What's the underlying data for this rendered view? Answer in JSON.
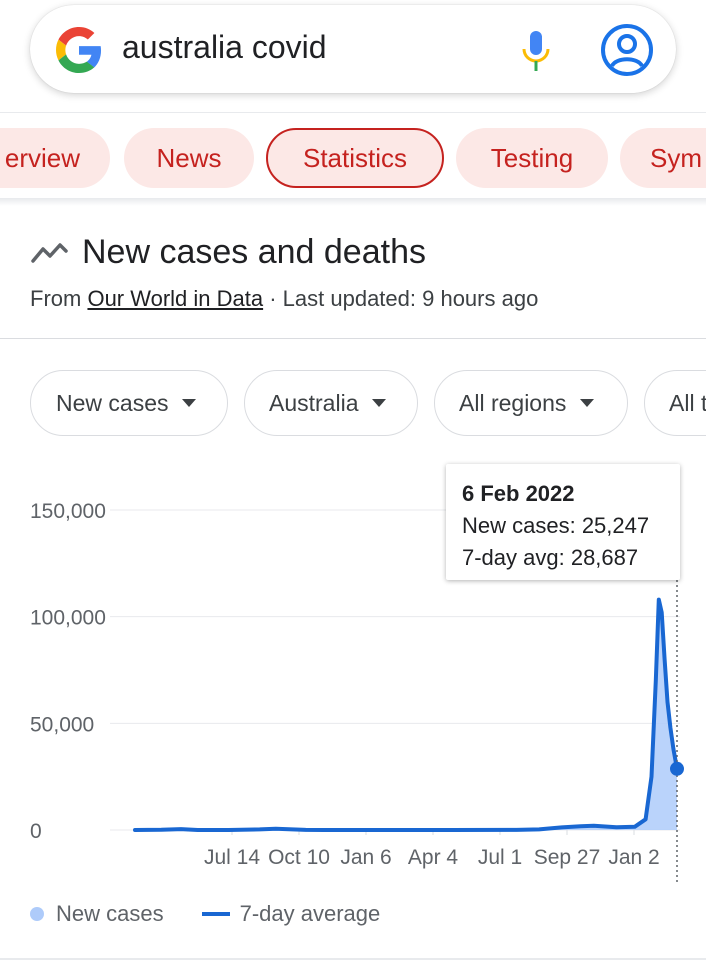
{
  "search": {
    "query": "australia covid"
  },
  "tabs": [
    {
      "label": "Overview",
      "visible": "erview"
    },
    {
      "label": "News",
      "visible": "News"
    },
    {
      "label": "Statistics",
      "visible": "Statistics",
      "selected": true
    },
    {
      "label": "Testing",
      "visible": "Testing"
    },
    {
      "label": "Symptoms",
      "visible": "Sym"
    }
  ],
  "card": {
    "title": "New cases and deaths",
    "source_prefix": "From",
    "source_link": "Our World in Data",
    "updated": "· Last updated: 9 hours ago"
  },
  "filters": [
    {
      "label": "New cases"
    },
    {
      "label": "Australia"
    },
    {
      "label": "All regions"
    },
    {
      "label": "All t"
    }
  ],
  "tooltip": {
    "date": "6 Feb 2022",
    "new_cases": "New cases: 25,247",
    "avg": "7-day avg: 28,687"
  },
  "legend": {
    "bars": "New cases",
    "line": "7-day average"
  },
  "colors": {
    "accent": "#1967d2",
    "bar_fill": "#aecbfa",
    "chip_bg": "#fce8e6",
    "chip_text": "#c5221f"
  },
  "chart_data": {
    "type": "area",
    "title": "New cases and deaths",
    "xlabel": "",
    "ylabel": "",
    "ylim": [
      0,
      150000
    ],
    "yticks": [
      0,
      50000,
      100000,
      150000
    ],
    "ytick_labels": [
      "0",
      "50,000",
      "100,000",
      "150,000"
    ],
    "xtick_labels": [
      "Jul 14",
      "Oct 10",
      "Jan 6",
      "Apr 4",
      "Jul 1",
      "Sep 27",
      "Jan 2"
    ],
    "grid": true,
    "legend_position": "bottom-left",
    "series": [
      {
        "name": "7-day average",
        "x": [
          "2020-01-25",
          "2020-03-01",
          "2020-03-28",
          "2020-04-20",
          "2020-06-01",
          "2020-07-14",
          "2020-08-05",
          "2020-09-15",
          "2020-10-10",
          "2021-01-06",
          "2021-04-04",
          "2021-07-01",
          "2021-08-01",
          "2021-09-01",
          "2021-09-27",
          "2021-10-15",
          "2021-11-15",
          "2021-12-10",
          "2021-12-25",
          "2022-01-02",
          "2022-01-08",
          "2022-01-12",
          "2022-01-16",
          "2022-01-20",
          "2022-01-24",
          "2022-01-28",
          "2022-02-01",
          "2022-02-06"
        ],
        "values": [
          0,
          100,
          400,
          20,
          10,
          300,
          600,
          30,
          15,
          20,
          10,
          30,
          300,
          1200,
          1800,
          2000,
          1300,
          1500,
          5000,
          25000,
          70000,
          108000,
          102000,
          80000,
          60000,
          48000,
          38000,
          28687
        ]
      }
    ]
  }
}
